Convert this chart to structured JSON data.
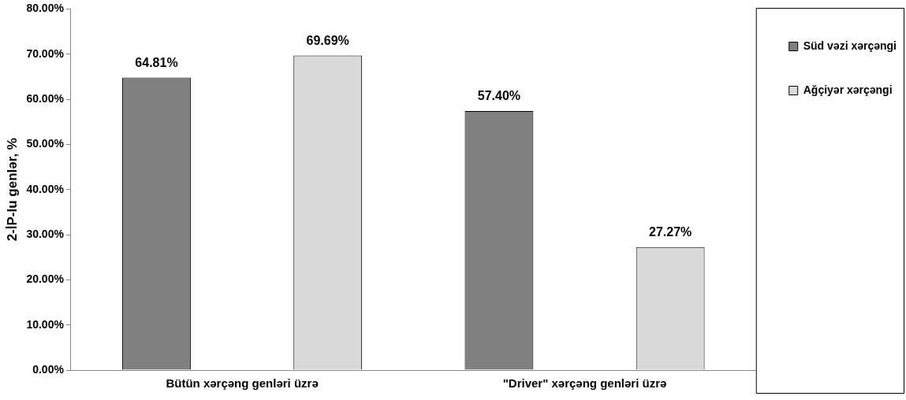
{
  "chart_data": {
    "type": "bar",
    "ylabel": "2-İP-lu genlər, %",
    "categories": [
      "Bütün xərçəng genləri üzrə",
      "\"Driver\" xərçəng genləri üzrə"
    ],
    "series": [
      {
        "name": "Süd vəzi xərçəngi",
        "color": "#808080",
        "values": [
          64.81,
          57.4
        ],
        "value_labels": [
          "64.81%",
          "57.40%"
        ]
      },
      {
        "name": "Ağçiyər xərçəngi",
        "color": "#d9d9d9",
        "values": [
          69.69,
          27.27
        ],
        "value_labels": [
          "69.69%",
          "27.27%"
        ]
      }
    ],
    "ylim": [
      0,
      80
    ],
    "yticks": [
      {
        "value": 0,
        "label": "0.00%"
      },
      {
        "value": 10,
        "label": "10.00%"
      },
      {
        "value": 20,
        "label": "20.00%"
      },
      {
        "value": 30,
        "label": "30.00%"
      },
      {
        "value": 40,
        "label": "40.00%"
      },
      {
        "value": 50,
        "label": "50.00%"
      },
      {
        "value": 60,
        "label": "60.00%"
      },
      {
        "value": 70,
        "label": "70.00%"
      },
      {
        "value": 80,
        "label": "80.00%"
      }
    ],
    "grid": false,
    "legend": "top right"
  }
}
